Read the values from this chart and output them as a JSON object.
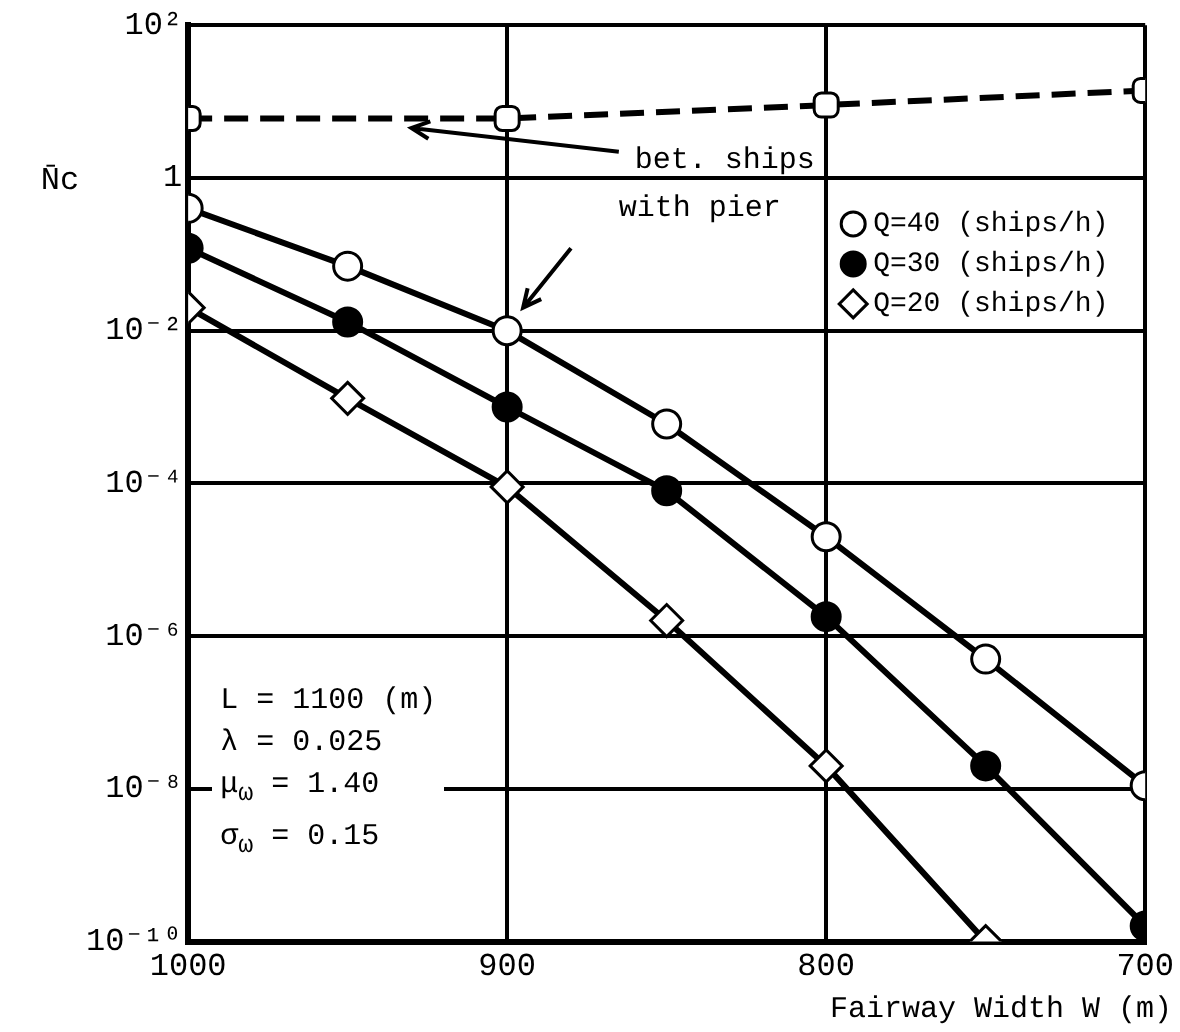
{
  "chart_data": {
    "type": "line",
    "xlabel": "Fairway Width W (m)",
    "ylabel": "N̄c",
    "x": [
      1000,
      950,
      900,
      850,
      800,
      750,
      700
    ],
    "series": [
      {
        "name": "bet. ships",
        "color": "#000000",
        "line_style": "dashed",
        "marker": "square",
        "x": [
          1000,
          900,
          800,
          700
        ],
        "values": [
          6,
          6,
          9,
          14
        ]
      },
      {
        "name": "Q=40 (ships/h)",
        "color": "#000000",
        "marker": "circle",
        "values": [
          0.4,
          0.07,
          0.01,
          0.0006,
          2e-05,
          5e-07,
          1.1e-08
        ]
      },
      {
        "name": "Q=30 (ships/h)",
        "color": "#000000",
        "marker": "circle",
        "values": [
          0.12,
          0.013,
          0.001,
          8e-05,
          1.8e-06,
          2e-08,
          1.6e-10
        ]
      },
      {
        "name": "Q=20 (ships/h)",
        "color": "#000000",
        "marker": "diamond",
        "x": [
          1000,
          950,
          900,
          850,
          800,
          750
        ],
        "values": [
          0.02,
          0.0013,
          9e-05,
          1.6e-06,
          2e-08,
          1e-10
        ]
      }
    ],
    "annotations": [
      "with pier",
      "L = 1100 (m)",
      "λ = 0.025",
      "μ$_{ω}$ = 1.40",
      "σ$_{ω}$ = 0.15"
    ],
    "log": "y",
    "xlim": [
      1000,
      700
    ],
    "xticks": [
      1000,
      900,
      800,
      700
    ],
    "ylim": [
      1e-10,
      100
    ],
    "yticks": [
      {
        "value": 1e-10,
        "label": "10⁻¹⁰"
      },
      {
        "value": 1e-08,
        "label": "10⁻⁸"
      },
      {
        "value": 1e-06,
        "label": "10⁻⁶"
      },
      {
        "value": 0.0001,
        "label": "10⁻⁴"
      },
      {
        "value": 0.01,
        "label": "10⁻²"
      },
      1,
      {
        "value": 100,
        "label": "10²"
      }
    ],
    "grid": true,
    "legend": "top right"
  }
}
